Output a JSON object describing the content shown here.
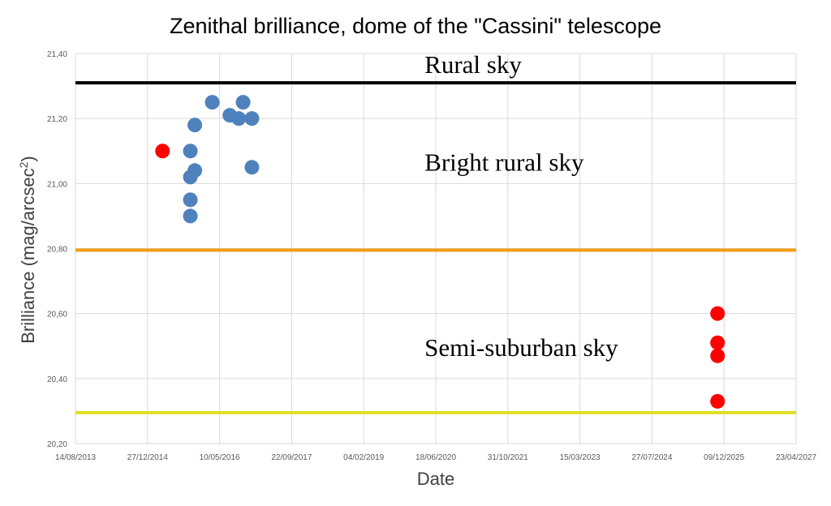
{
  "chart_data": {
    "type": "scatter",
    "title": "Zenithal brilliance, dome of the \"Cassini\" telescope",
    "xlabel": "Date",
    "ylabel": "Brilliance (mag/arcsec",
    "ylabel_sup": "2",
    "ylabel_end": ")",
    "x_ticks": [
      "14/08/2013",
      "27/12/2014",
      "10/05/2016",
      "22/09/2017",
      "04/02/2019",
      "18/06/2020",
      "31/10/2021",
      "15/03/2023",
      "27/07/2024",
      "09/12/2025",
      "23/04/2027"
    ],
    "y_ticks": [
      "20,20",
      "20,40",
      "20,60",
      "20,80",
      "21,00",
      "21,20",
      "21,40"
    ],
    "xlim": [
      "2013-08-14",
      "2027-04-23"
    ],
    "ylim": [
      20.2,
      21.4
    ],
    "grid": true,
    "legend": "none",
    "thresholds": [
      {
        "label": "Rural sky",
        "value": 21.31,
        "color": "#000000",
        "label_x": "2020-04-01",
        "label_y": 21.34
      },
      {
        "label": "Bright rural sky",
        "value": 20.795,
        "color": "#F39C12",
        "label_x": "2020-04-01",
        "label_y": 21.04
      },
      {
        "label": "Semi-suburban sky",
        "value": 20.295,
        "color": "#DFE022",
        "label_x": "2020-04-01",
        "label_y": 20.47
      }
    ],
    "series": [
      {
        "color": "#4F81BD",
        "points": [
          {
            "x": "2015-10-20",
            "y": 21.1
          },
          {
            "x": "2015-10-20",
            "y": 21.02
          },
          {
            "x": "2015-10-20",
            "y": 20.95
          },
          {
            "x": "2015-10-20",
            "y": 20.9
          },
          {
            "x": "2015-11-20",
            "y": 21.18
          },
          {
            "x": "2015-11-20",
            "y": 21.04
          },
          {
            "x": "2016-03-20",
            "y": 21.25
          },
          {
            "x": "2016-07-20",
            "y": 21.21
          },
          {
            "x": "2016-09-20",
            "y": 21.2
          },
          {
            "x": "2016-10-20",
            "y": 21.25
          },
          {
            "x": "2016-12-20",
            "y": 21.2
          },
          {
            "x": "2016-12-20",
            "y": 21.05
          }
        ]
      },
      {
        "color": "#FF0000",
        "points": [
          {
            "x": "2015-04-10",
            "y": 21.1
          },
          {
            "x": "2025-10-25",
            "y": 20.6
          },
          {
            "x": "2025-10-25",
            "y": 20.51
          },
          {
            "x": "2025-10-25",
            "y": 20.47
          },
          {
            "x": "2025-10-25",
            "y": 20.33
          }
        ]
      }
    ]
  }
}
